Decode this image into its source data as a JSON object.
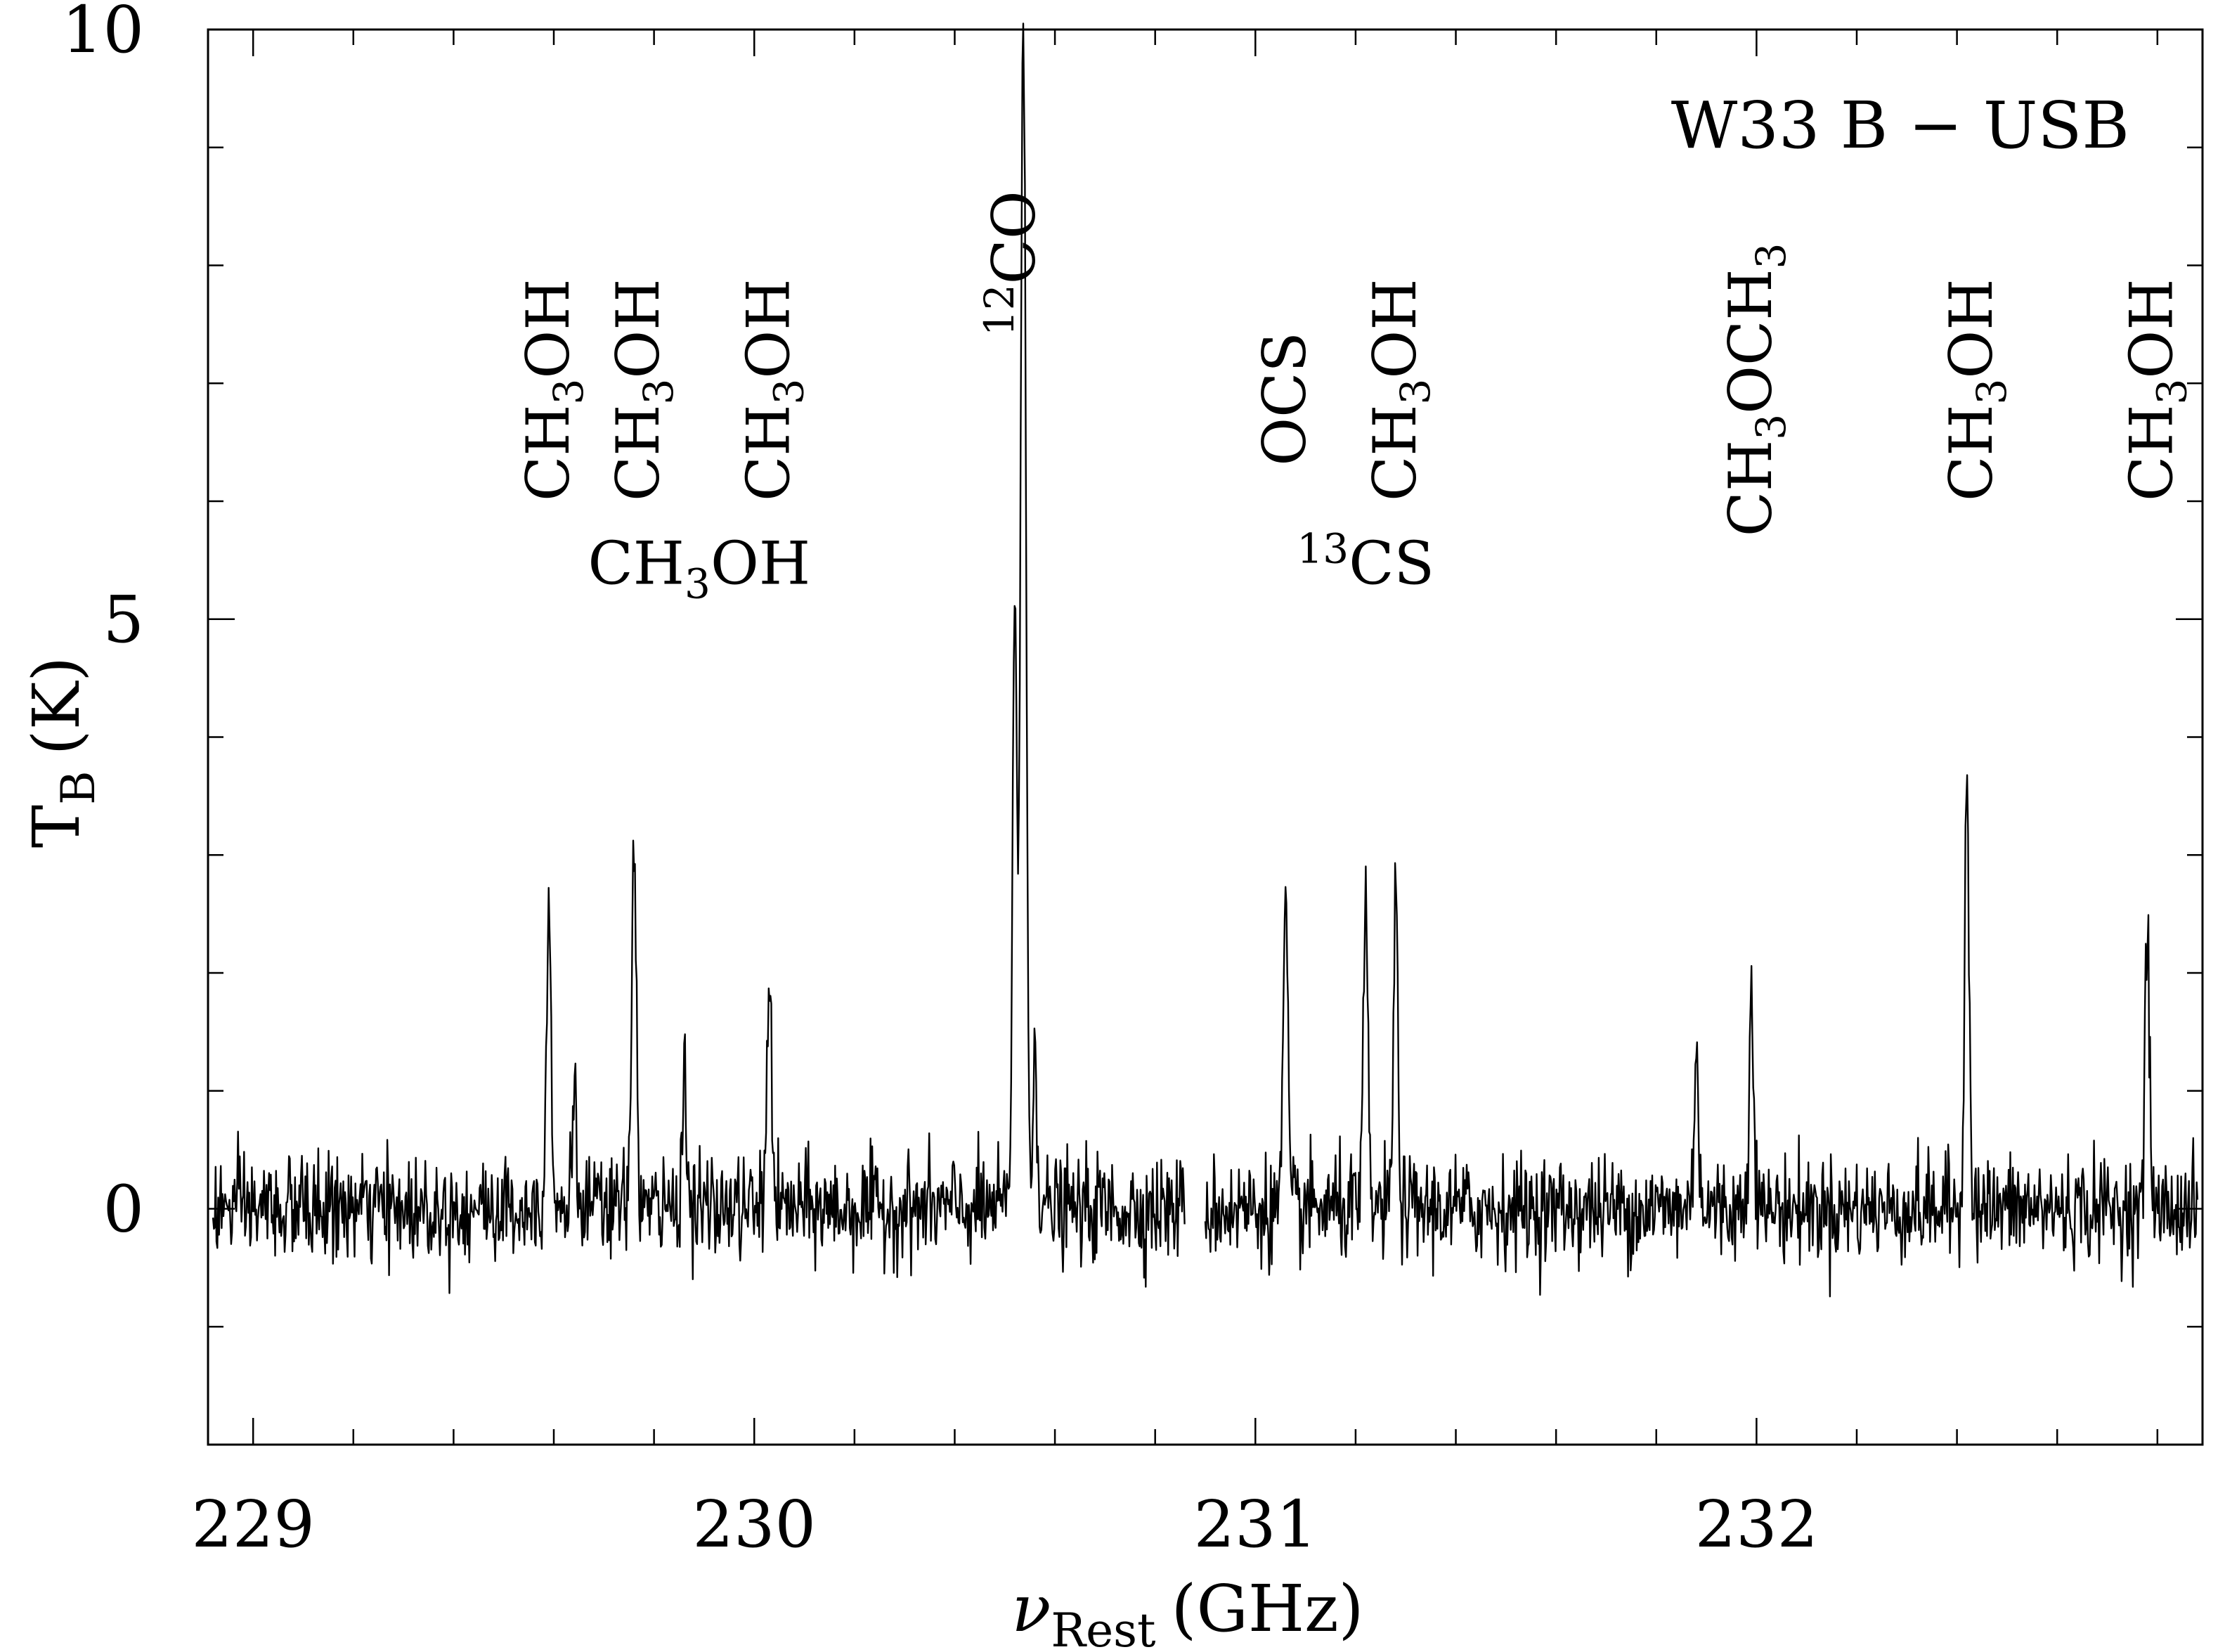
{
  "chart_data": {
    "type": "line",
    "title": "W33 B − USB",
    "xlabel": {
      "symbol": "ν",
      "sub": "Rest",
      "unit": "(GHz)"
    },
    "ylabel": {
      "symbol": "T",
      "sub": "B",
      "unit": "(K)"
    },
    "xlim": [
      228.91,
      232.89
    ],
    "ylim": [
      -2.0,
      10.0
    ],
    "x_ticks": [
      {
        "value": 229,
        "label": "229"
      },
      {
        "value": 230,
        "label": "230"
      },
      {
        "value": 231,
        "label": "231"
      },
      {
        "value": 232,
        "label": "232"
      }
    ],
    "y_ticks": [
      {
        "value": 0,
        "label": "0"
      },
      {
        "value": 5,
        "label": "5"
      },
      {
        "value": 10,
        "label": "10"
      }
    ],
    "x_minor_step": 0.2,
    "y_minor_step": 1.0,
    "grid": false,
    "baseline": 0,
    "noise_rms": 0.22,
    "gap": [
      230.86,
      230.9
    ],
    "line_color": "#000000",
    "peaks": [
      {
        "x": 229.59,
        "y": 2.8
      },
      {
        "x": 229.64,
        "y": 1.0
      },
      {
        "x": 229.76,
        "y": 3.3
      },
      {
        "x": 229.86,
        "y": 1.2
      },
      {
        "x": 230.03,
        "y": 2.1
      },
      {
        "x": 230.52,
        "y": 5.2
      },
      {
        "x": 230.535,
        "y": 7.0
      },
      {
        "x": 230.54,
        "y": 4.6
      },
      {
        "x": 230.56,
        "y": 1.4
      },
      {
        "x": 231.06,
        "y": 2.6
      },
      {
        "x": 231.22,
        "y": 2.5
      },
      {
        "x": 231.28,
        "y": 2.6
      },
      {
        "x": 231.88,
        "y": 1.4
      },
      {
        "x": 231.99,
        "y": 2.0
      },
      {
        "x": 232.42,
        "y": 3.7
      },
      {
        "x": 232.78,
        "y": 2.3
      }
    ],
    "annotations": [
      {
        "x": 229.59,
        "y": 6.0,
        "rotated": true,
        "parts": [
          [
            "CH",
            0
          ],
          [
            "3",
            1
          ],
          [
            "OH",
            0
          ]
        ]
      },
      {
        "x": 229.77,
        "y": 6.0,
        "rotated": true,
        "parts": [
          [
            "CH",
            0
          ],
          [
            "3",
            1
          ],
          [
            "OH",
            0
          ]
        ]
      },
      {
        "x": 230.03,
        "y": 6.0,
        "rotated": true,
        "parts": [
          [
            "CH",
            0
          ],
          [
            "3",
            1
          ],
          [
            "OH",
            0
          ]
        ]
      },
      {
        "x": 229.89,
        "y": 5.3,
        "rotated": false,
        "parts": [
          [
            "CH",
            0
          ],
          [
            "3",
            1
          ],
          [
            "OH",
            0
          ]
        ]
      },
      {
        "x": 230.52,
        "y": 7.4,
        "rotated": true,
        "parts": [
          [
            "12",
            2
          ],
          [
            "CO",
            0
          ]
        ]
      },
      {
        "x": 231.06,
        "y": 6.3,
        "rotated": true,
        "parts": [
          [
            "OCS",
            0
          ]
        ]
      },
      {
        "x": 231.28,
        "y": 6.0,
        "rotated": true,
        "parts": [
          [
            "CH",
            0
          ],
          [
            "3",
            1
          ],
          [
            "OH",
            0
          ]
        ]
      },
      {
        "x": 231.22,
        "y": 5.3,
        "rotated": false,
        "parts": [
          [
            "13",
            2
          ],
          [
            "CS",
            0
          ]
        ]
      },
      {
        "x": 231.99,
        "y": 5.7,
        "rotated": true,
        "parts": [
          [
            "CH",
            0
          ],
          [
            "3",
            1
          ],
          [
            "OCH",
            0
          ],
          [
            "3",
            1
          ]
        ]
      },
      {
        "x": 232.43,
        "y": 6.0,
        "rotated": true,
        "parts": [
          [
            "CH",
            0
          ],
          [
            "3",
            1
          ],
          [
            "OH",
            0
          ]
        ]
      },
      {
        "x": 232.79,
        "y": 6.0,
        "rotated": true,
        "parts": [
          [
            "CH",
            0
          ],
          [
            "3",
            1
          ],
          [
            "OH",
            0
          ]
        ]
      }
    ]
  }
}
